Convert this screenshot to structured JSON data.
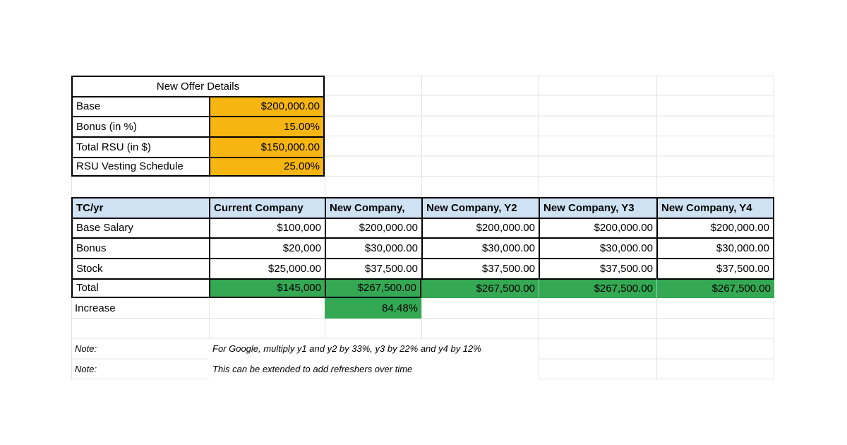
{
  "offer_table": {
    "title": "New Offer Details",
    "rows": [
      {
        "label": "Base",
        "value": "$200,000.00"
      },
      {
        "label": "Bonus (in %)",
        "value": "15.00%"
      },
      {
        "label": "Total RSU (in $)",
        "value": "$150,000.00"
      },
      {
        "label": "RSU Vesting Schedule",
        "value": "25.00%"
      }
    ]
  },
  "comparison_table": {
    "headers": [
      "TC/yr",
      "Current Company",
      "New Company,",
      "New Company, Y2",
      "New Company, Y3",
      "New Company, Y4"
    ],
    "rows": [
      {
        "label": "Base Salary",
        "values": [
          "$100,000",
          "$200,000.00",
          "$200,000.00",
          "$200,000.00",
          "$200,000.00"
        ]
      },
      {
        "label": "Bonus",
        "values": [
          "$20,000",
          "$30,000.00",
          "$30,000.00",
          "$30,000.00",
          "$30,000.00"
        ]
      },
      {
        "label": "Stock",
        "values": [
          "$25,000.00",
          "$37,500.00",
          "$37,500.00",
          "$37,500.00",
          "$37,500.00"
        ]
      },
      {
        "label": "Total",
        "values": [
          "$145,000",
          "$267,500.00",
          "$267,500.00",
          "$267,500.00",
          "$267,500.00"
        ]
      }
    ],
    "increase": {
      "label": "Increase",
      "value": "84.48%"
    }
  },
  "notes": [
    {
      "label": "Note:",
      "text": "For Google, multiply y1 and y2 by 33%, y3 by 22% and y4 by 12%"
    },
    {
      "label": "Note:",
      "text": "This can be extended to add refreshers over time"
    }
  ],
  "colors": {
    "highlight_orange": "#F6B510",
    "highlight_green": "#34A853",
    "header_blue": "#CFE2F3",
    "gridline": "#E2E2E2",
    "table_border": "#000000"
  }
}
